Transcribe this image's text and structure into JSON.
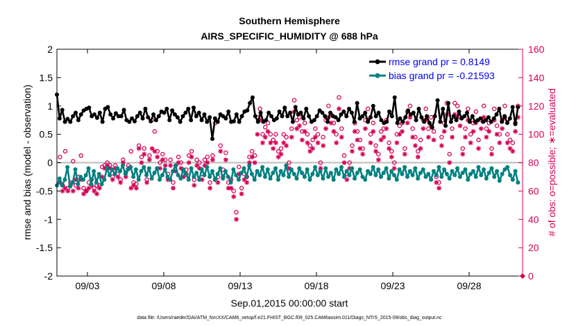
{
  "chart_data": {
    "type": "line",
    "title": "Southern Hemisphere",
    "subtitle": "AIRS_SPECIFIC_HUMIDITY @ 688 hPa",
    "xlabel": "Sep.01,2015 00:00:00 start",
    "ylabel": "rmse and bias (model - observation)",
    "y2label": "# of obs: o=possible; ∗=evaluated",
    "xlim": [
      1,
      31.5
    ],
    "ylim": [
      -2,
      2
    ],
    "y2lim": [
      0,
      160
    ],
    "x_ticks": [
      3,
      8,
      13,
      18,
      23,
      28
    ],
    "x_tick_labels": [
      "09/03",
      "09/08",
      "09/13",
      "09/18",
      "09/23",
      "09/28"
    ],
    "y_ticks": [
      -2,
      -1.5,
      -1,
      -0.5,
      0,
      0.5,
      1,
      1.5,
      2
    ],
    "y_tick_labels": [
      "-2",
      "-1.5",
      "-1",
      "-0.5",
      "0",
      "0.5",
      "1",
      "1.5",
      "2"
    ],
    "y2_ticks": [
      0,
      20,
      40,
      60,
      80,
      100,
      120,
      140,
      160
    ],
    "y2_tick_labels": [
      "0",
      "20",
      "40",
      "60",
      "80",
      "100",
      "120",
      "140",
      "160"
    ],
    "zero_line": 0,
    "legend": [
      {
        "label": "rmse grand pr = 0.8149",
        "color": "#000000"
      },
      {
        "label": "bias grand pr = -0.21593",
        "color": "#008080"
      }
    ],
    "footnote": "data file: /Users/raeder/DAI/ATM_forcXX/CAM6_setup/f.e21.FHIST_BGC.f09_025.CAM6assim.011/Diags_NTrS_2015-09/obs_diag_output.nc",
    "colors": {
      "rmse": "#000000",
      "bias": "#008080",
      "obs": "#d40055",
      "zero": "#bbbbbb"
    },
    "series": [
      {
        "name": "rmse",
        "values": [
          1.2,
          0.78,
          0.93,
          0.72,
          0.77,
          0.72,
          0.82,
          0.88,
          0.75,
          0.85,
          0.92,
          0.95,
          0.97,
          0.82,
          0.85,
          0.79,
          0.88,
          0.72,
          0.95,
          0.98,
          0.85,
          0.78,
          0.87,
          0.82,
          0.82,
          0.93,
          0.75,
          0.72,
          0.78,
          0.73,
          0.82,
          0.88,
          0.78,
          0.95,
          0.8,
          0.73,
          0.85,
          0.75,
          0.82,
          0.9,
          0.88,
          0.95,
          0.75,
          0.92,
          0.85,
          0.8,
          0.72,
          0.82,
          0.88,
          0.95,
          0.75,
          0.97,
          0.82,
          0.88,
          0.75,
          0.85,
          0.72,
          0.8,
          0.42,
          0.78,
          0.72,
          0.85,
          0.82,
          0.78,
          0.9,
          0.72,
          0.73,
          0.85,
          0.72,
          0.82,
          0.9,
          0.92,
          1.05,
          1.15,
          0.82,
          0.72,
          0.88,
          0.72,
          0.75,
          0.88,
          0.82,
          0.75,
          0.78,
          0.9,
          0.82,
          0.97,
          0.82,
          0.88,
          0.72,
          0.98,
          0.85,
          0.88,
          0.78,
          0.95,
          0.82,
          0.72,
          0.75,
          0.82,
          0.92,
          0.88,
          0.82,
          0.72,
          0.88,
          0.82,
          0.8,
          0.75,
          0.85,
          0.9,
          0.82,
          0.95,
          0.88,
          0.72,
          1.05,
          0.78,
          0.82,
          0.88,
          0.72,
          0.8,
          1.0,
          0.82,
          0.88,
          0.75,
          0.7,
          0.72,
          0.9,
          0.82,
          1.15,
          0.7,
          0.78,
          0.72,
          0.8,
          0.92,
          0.85,
          0.88,
          0.75,
          0.95,
          0.8,
          0.72,
          0.82,
          0.7,
          0.62,
          0.82,
          1.1,
          0.72,
          0.95,
          0.65,
          1.05,
          0.72,
          0.82,
          0.75,
          0.9,
          0.78,
          0.82,
          0.88,
          0.72,
          0.82,
          0.72,
          0.75,
          0.78,
          0.72,
          0.75,
          0.8,
          0.72,
          0.78,
          0.85,
          0.95,
          0.72,
          0.82,
          0.7,
          0.78,
          0.98,
          0.68,
          0.98
        ]
      },
      {
        "name": "bias",
        "values": [
          -0.4,
          -0.28,
          -0.4,
          -0.3,
          -0.08,
          -0.42,
          -0.35,
          -0.12,
          -0.38,
          -0.25,
          -0.3,
          -0.22,
          -0.1,
          -0.38,
          -0.15,
          -0.35,
          -0.2,
          -0.38,
          -0.3,
          -0.1,
          -0.22,
          -0.12,
          -0.2,
          -0.1,
          -0.15,
          -0.05,
          -0.2,
          -0.12,
          -0.08,
          -0.25,
          -0.12,
          -0.3,
          -0.15,
          -0.08,
          -0.22,
          -0.1,
          -0.28,
          -0.18,
          -0.1,
          -0.3,
          -0.22,
          -0.12,
          -0.25,
          -0.3,
          -0.15,
          -0.05,
          -0.22,
          -0.28,
          -0.12,
          -0.2,
          -0.3,
          -0.1,
          -0.25,
          -0.18,
          -0.3,
          -0.12,
          -0.22,
          -0.08,
          -0.25,
          -0.15,
          -0.3,
          -0.2,
          -0.1,
          -0.28,
          -0.15,
          -0.25,
          -0.35,
          -0.12,
          -0.22,
          -0.3,
          -0.18,
          -0.1,
          -0.25,
          -0.05,
          -0.2,
          -0.3,
          -0.15,
          -0.22,
          -0.08,
          -0.25,
          -0.12,
          -0.28,
          -0.18,
          -0.1,
          -0.3,
          -0.15,
          -0.22,
          -0.05,
          -0.25,
          -0.12,
          -0.2,
          -0.28,
          -0.1,
          -0.18,
          -0.25,
          -0.12,
          -0.3,
          -0.2,
          -0.08,
          -0.22,
          -0.15,
          -0.28,
          -0.1,
          -0.25,
          -0.18,
          -0.3,
          -0.12,
          -0.2,
          -0.08,
          -0.25,
          -0.15,
          -0.22,
          -0.1,
          -0.28,
          -0.18,
          -0.12,
          -0.25,
          -0.3,
          -0.15,
          -0.2,
          -0.08,
          -0.22,
          -0.12,
          -0.25,
          -0.18,
          -0.1,
          -0.28,
          -0.15,
          -0.22,
          -0.3,
          -0.12,
          -0.2,
          -0.08,
          -0.25,
          -0.15,
          -0.22,
          -0.1,
          -0.28,
          -0.18,
          -0.12,
          -0.25,
          -0.2,
          -0.3,
          -0.15,
          -0.22,
          -0.08,
          -0.25,
          -0.12,
          -0.2,
          -0.28,
          -0.15,
          -0.22,
          -0.1,
          -0.25,
          -0.18,
          -0.12,
          -0.3,
          -0.2,
          -0.15,
          -0.25,
          -0.08,
          -0.22,
          -0.12,
          -0.28,
          -0.18,
          -0.1,
          -0.25,
          -0.15,
          -0.32,
          -0.2,
          -0.12,
          -0.08,
          -0.22,
          -0.3,
          -0.15,
          -0.35
        ]
      },
      {
        "name": "obs_possible",
        "values": [
          84,
          64,
          88,
          62,
          66,
          81,
          64,
          70,
          85,
          62,
          60,
          66,
          68,
          62,
          64,
          64,
          77,
          78,
          80,
          78,
          70,
          78,
          72,
          68,
          82,
          73,
          78,
          88,
          66,
          65,
          92,
          84,
          90,
          68,
          85,
          110,
          102,
          88,
          80,
          86,
          82,
          72,
          82,
          66,
          78,
          84,
          80,
          74,
          75,
          85,
          88,
          68,
          82,
          80,
          72,
          82,
          84,
          66,
          85,
          108,
          70,
          92,
          75,
          87,
          66,
          68,
          60,
          45,
          77,
          62,
          72,
          70,
          84,
          88,
          85,
          112,
          118,
          100,
          105,
          108,
          100,
          96,
          100,
          88,
          90,
          100,
          98,
          80,
          104,
          124,
          110,
          112,
          102,
          108,
          100,
          92,
          96,
          104,
          100,
          80,
          98,
          110,
          120,
          114,
          108,
          100,
          126,
          104,
          85,
          72,
          80,
          92,
          108,
          102,
          96,
          90,
          110,
          118,
          100,
          108,
          92,
          86,
          102,
          104,
          110,
          94,
          88,
          80,
          100,
          106,
          108,
          90,
          116,
          120,
          104,
          98,
          88,
          96,
          110,
          118,
          104,
          112,
          102,
          70,
          66,
          98,
          108,
          122,
          86,
          104,
          122,
          120,
          112,
          90,
          104,
          118,
          100,
          108,
          116,
          96,
          110,
          120,
          104,
          108,
          90,
          118,
          106,
          100,
          110,
          120,
          100,
          96,
          94,
          108,
          120
        ]
      },
      {
        "name": "obs_evaluated",
        "values": [
          66,
          60,
          62,
          60,
          64,
          60,
          68,
          62,
          68,
          58,
          60,
          62,
          64,
          60,
          58,
          62,
          70,
          76,
          78,
          76,
          68,
          76,
          70,
          66,
          80,
          70,
          76,
          62,
          64,
          62,
          90,
          80,
          86,
          66,
          82,
          90,
          88,
          84,
          76,
          82,
          78,
          68,
          78,
          62,
          74,
          80,
          76,
          70,
          72,
          80,
          84,
          64,
          78,
          76,
          68,
          78,
          80,
          62,
          82,
          68,
          66,
          88,
          70,
          82,
          62,
          62,
          56,
          40,
          72,
          58,
          68,
          66,
          80,
          84,
          80,
          100,
          110,
          94,
          98,
          102,
          94,
          90,
          94,
          84,
          86,
          94,
          92,
          76,
          98,
          116,
          104,
          106,
          96,
          102,
          94,
          88,
          90,
          98,
          94,
          76,
          92,
          104,
          112,
          108,
          102,
          94,
          118,
          98,
          80,
          68,
          76,
          88,
          102,
          96,
          90,
          86,
          104,
          110,
          94,
          102,
          88,
          82,
          96,
          98,
          104,
          90,
          84,
          76,
          94,
          100,
          102,
          86,
          108,
          112,
          98,
          92,
          84,
          90,
          104,
          110,
          98,
          106,
          96,
          66,
          62,
          92,
          102,
          114,
          80,
          98,
          114,
          112,
          106,
          86,
          98,
          110,
          94,
          102,
          108,
          90,
          104,
          112,
          98,
          102,
          86,
          110,
          100,
          94,
          104,
          112,
          94,
          90,
          88,
          102,
          112
        ]
      }
    ]
  }
}
